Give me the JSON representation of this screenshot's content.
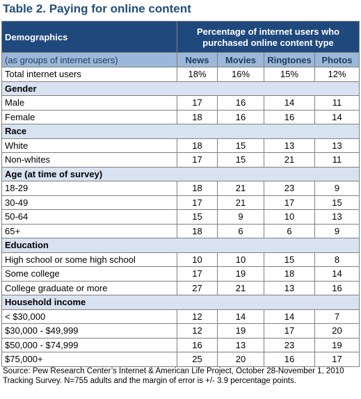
{
  "title": "Table 2. Paying for online content",
  "header": {
    "demographics": "Demographics",
    "percentage_line1": "Percentage of internet users who",
    "percentage_line2": "purchased online content type",
    "groups_label": "(as groups of internet users)",
    "columns": [
      "News",
      "Movies",
      "Ringtones",
      "Photos"
    ]
  },
  "total": {
    "label": "Total internet users",
    "values": [
      "18%",
      "16%",
      "15%",
      "12%"
    ]
  },
  "sections": [
    {
      "name": "Gender",
      "rows": [
        {
          "label": "Male",
          "values": [
            "17",
            "16",
            "14",
            "11"
          ]
        },
        {
          "label": "Female",
          "values": [
            "18",
            "16",
            "16",
            "14"
          ]
        }
      ]
    },
    {
      "name": "Race",
      "rows": [
        {
          "label": "White",
          "values": [
            "18",
            "15",
            "13",
            "13"
          ]
        },
        {
          "label": "Non-whites",
          "values": [
            "17",
            "15",
            "21",
            "11"
          ]
        }
      ]
    },
    {
      "name": "Age (at time of survey)",
      "rows": [
        {
          "label": "18-29",
          "values": [
            "18",
            "21",
            "23",
            "9"
          ]
        },
        {
          "label": "30-49",
          "values": [
            "17",
            "21",
            "17",
            "15"
          ]
        },
        {
          "label": "50-64",
          "values": [
            "15",
            "9",
            "10",
            "13"
          ]
        },
        {
          "label": "65+",
          "values": [
            "18",
            "6",
            "6",
            "9"
          ]
        }
      ]
    },
    {
      "name": "Education",
      "rows": [
        {
          "label": "High school or some high school",
          "values": [
            "10",
            "10",
            "15",
            "8"
          ]
        },
        {
          "label": "Some college",
          "values": [
            "17",
            "19",
            "18",
            "14"
          ]
        },
        {
          "label": "College graduate or more",
          "values": [
            "27",
            "21",
            "13",
            "16"
          ]
        }
      ]
    },
    {
      "name": "Household income",
      "rows": [
        {
          "label": "< $30,000",
          "values": [
            "12",
            "14",
            "14",
            "7"
          ]
        },
        {
          "label": "$30,000 - $49,999",
          "values": [
            "12",
            "19",
            "17",
            "20"
          ]
        },
        {
          "label": "$50,000 - $74,999",
          "values": [
            "16",
            "13",
            "23",
            "19"
          ]
        },
        {
          "label": "$75,000+",
          "values": [
            "25",
            "20",
            "16",
            "17"
          ]
        }
      ]
    }
  ],
  "source": "Source: Pew Research Center’s Internet & American Life Project, October 28-November 1, 2010 Tracking Survey. N=755 adults and the margin of error is +/- 3.9 percentage points.",
  "colors": {
    "title": "#1f4e79",
    "header_bg": "#1f497d",
    "subheader_bg": "#9bb7d9",
    "section_bg": "#d9e2f0",
    "border": "#7f7f7f"
  }
}
